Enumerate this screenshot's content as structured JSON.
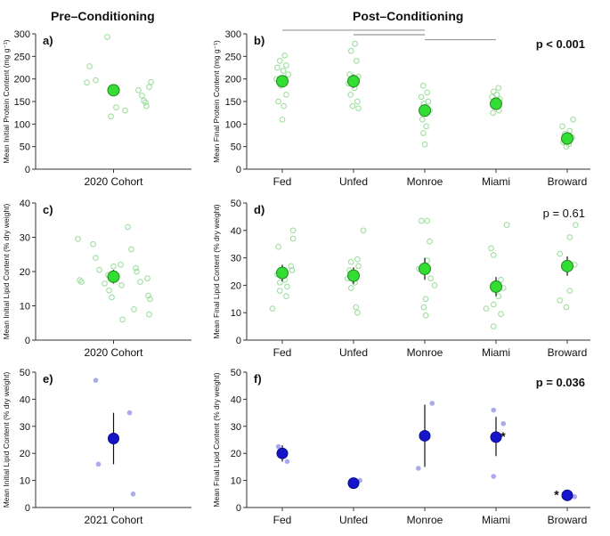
{
  "headers": {
    "left": "Pre–Conditioning",
    "right": "Post–Conditioning"
  },
  "colors": {
    "point_fill": "#33dd33",
    "point_stroke": "#1e8a1e",
    "jitter_green": "#9fde9f",
    "point_blue": "#1515cc",
    "jitter_blue": "#aaaaee",
    "axis": "#333333",
    "sig_bar": "#999999"
  },
  "chart_data": [
    {
      "id": "a",
      "type": "scatter",
      "panel_label": "a)",
      "ylabel": "Mean Initial Protein Content (mg g⁻¹)",
      "ylim": [
        0,
        300
      ],
      "yticks": [
        0,
        50,
        100,
        150,
        200,
        250,
        300
      ],
      "categories": [
        "2020 Cohort"
      ],
      "style": "green",
      "points": [
        {
          "category": "2020 Cohort",
          "mean": 175,
          "err_low": 170,
          "err_high": 180,
          "raw": [
            {
              "v": 192,
              "o": -0.3
            },
            {
              "v": 228,
              "o": -0.27
            },
            {
              "v": 197,
              "o": -0.2
            },
            {
              "v": 293,
              "o": -0.07
            },
            {
              "v": 117,
              "o": -0.03
            },
            {
              "v": 137,
              "o": 0.03
            },
            {
              "v": 130,
              "o": 0.13
            },
            {
              "v": 175,
              "o": 0.28
            },
            {
              "v": 163,
              "o": 0.32
            },
            {
              "v": 152,
              "o": 0.34
            },
            {
              "v": 148,
              "o": 0.36
            },
            {
              "v": 140,
              "o": 0.37
            },
            {
              "v": 182,
              "o": 0.4
            },
            {
              "v": 193,
              "o": 0.42
            }
          ]
        }
      ],
      "annotation": ""
    },
    {
      "id": "b",
      "type": "scatter",
      "panel_label": "b)",
      "ylabel": "Mean Final Protein Content (mg g⁻¹)",
      "ylim": [
        0,
        300
      ],
      "yticks": [
        0,
        50,
        100,
        150,
        200,
        250,
        300
      ],
      "categories": [
        "Fed",
        "Unfed",
        "Monroe",
        "Miami",
        "Broward"
      ],
      "style": "green",
      "points": [
        {
          "category": "Fed",
          "mean": 195,
          "err_low": 182,
          "err_high": 208,
          "raw": [
            {
              "v": 252,
              "o": 0.05
            },
            {
              "v": 240,
              "o": -0.05
            },
            {
              "v": 230,
              "o": 0.08
            },
            {
              "v": 225,
              "o": -0.1
            },
            {
              "v": 218,
              "o": 0.02
            },
            {
              "v": 210,
              "o": 0.12
            },
            {
              "v": 200,
              "o": -0.12
            },
            {
              "v": 185,
              "o": -0.03
            },
            {
              "v": 165,
              "o": 0.08
            },
            {
              "v": 150,
              "o": -0.08
            },
            {
              "v": 140,
              "o": 0.03
            },
            {
              "v": 110,
              "o": 0.0
            }
          ]
        },
        {
          "category": "Unfed",
          "mean": 195,
          "err_low": 180,
          "err_high": 210,
          "raw": [
            {
              "v": 278,
              "o": 0.03
            },
            {
              "v": 262,
              "o": -0.05
            },
            {
              "v": 240,
              "o": 0.06
            },
            {
              "v": 210,
              "o": -0.08
            },
            {
              "v": 205,
              "o": 0.1
            },
            {
              "v": 190,
              "o": -0.1
            },
            {
              "v": 180,
              "o": 0.02
            },
            {
              "v": 165,
              "o": -0.06
            },
            {
              "v": 150,
              "o": 0.08
            },
            {
              "v": 140,
              "o": -0.02
            },
            {
              "v": 135,
              "o": 0.1
            }
          ]
        },
        {
          "category": "Monroe",
          "mean": 130,
          "err_low": 120,
          "err_high": 140,
          "raw": [
            {
              "v": 185,
              "o": -0.03
            },
            {
              "v": 170,
              "o": 0.05
            },
            {
              "v": 160,
              "o": -0.07
            },
            {
              "v": 150,
              "o": 0.07
            },
            {
              "v": 145,
              "o": -0.02
            },
            {
              "v": 130,
              "o": 0.1
            },
            {
              "v": 110,
              "o": -0.05
            },
            {
              "v": 95,
              "o": 0.03
            },
            {
              "v": 80,
              "o": -0.03
            },
            {
              "v": 55,
              "o": 0.0
            }
          ]
        },
        {
          "category": "Miami",
          "mean": 145,
          "err_low": 138,
          "err_high": 152,
          "raw": [
            {
              "v": 180,
              "o": 0.05
            },
            {
              "v": 172,
              "o": -0.05
            },
            {
              "v": 165,
              "o": 0.02
            },
            {
              "v": 160,
              "o": -0.08
            },
            {
              "v": 155,
              "o": 0.08
            },
            {
              "v": 140,
              "o": -0.03
            },
            {
              "v": 130,
              "o": 0.06
            },
            {
              "v": 125,
              "o": -0.06
            }
          ]
        },
        {
          "category": "Broward",
          "mean": 68,
          "err_low": 60,
          "err_high": 76,
          "raw": [
            {
              "v": 110,
              "o": 0.12
            },
            {
              "v": 95,
              "o": -0.1
            },
            {
              "v": 85,
              "o": 0.05
            },
            {
              "v": 78,
              "o": -0.05
            },
            {
              "v": 70,
              "o": 0.1
            },
            {
              "v": 60,
              "o": -0.08
            },
            {
              "v": 55,
              "o": 0.03
            },
            {
              "v": 50,
              "o": -0.02
            }
          ]
        }
      ],
      "annotation": "p < 0.001",
      "annotation_bold": true,
      "sig_bars": [
        {
          "from": "Fed",
          "to": "Monroe",
          "y": 308
        },
        {
          "from": "Unfed",
          "to": "Monroe",
          "y": 298
        },
        {
          "from": "Monroe",
          "to": "Miami",
          "y": 287
        }
      ]
    },
    {
      "id": "c",
      "type": "scatter",
      "panel_label": "c)",
      "ylabel": "Mean Initial Lipid Content (% dry weight)",
      "ylim": [
        0,
        40
      ],
      "yticks": [
        0,
        10,
        20,
        30,
        40
      ],
      "categories": [
        "2020 Cohort"
      ],
      "style": "green",
      "points": [
        {
          "category": "2020 Cohort",
          "mean": 18.5,
          "err_low": 16.5,
          "err_high": 20.5,
          "raw": [
            {
              "v": 29.5,
              "o": -0.4
            },
            {
              "v": 17.5,
              "o": -0.38
            },
            {
              "v": 17,
              "o": -0.36
            },
            {
              "v": 28,
              "o": -0.23
            },
            {
              "v": 24,
              "o": -0.2
            },
            {
              "v": 20.5,
              "o": -0.16
            },
            {
              "v": 16.5,
              "o": -0.1
            },
            {
              "v": 19,
              "o": -0.06
            },
            {
              "v": 14.5,
              "o": -0.05
            },
            {
              "v": 12.5,
              "o": -0.02
            },
            {
              "v": 21.5,
              "o": 0.0
            },
            {
              "v": 22,
              "o": 0.08
            },
            {
              "v": 16,
              "o": 0.09
            },
            {
              "v": 6,
              "o": 0.1
            },
            {
              "v": 33,
              "o": 0.16
            },
            {
              "v": 26.5,
              "o": 0.2
            },
            {
              "v": 9,
              "o": 0.23
            },
            {
              "v": 21,
              "o": 0.25
            },
            {
              "v": 20,
              "o": 0.26
            },
            {
              "v": 17,
              "o": 0.3
            },
            {
              "v": 18,
              "o": 0.38
            },
            {
              "v": 13,
              "o": 0.39
            },
            {
              "v": 7.5,
              "o": 0.4
            },
            {
              "v": 12,
              "o": 0.41
            }
          ]
        }
      ],
      "annotation": ""
    },
    {
      "id": "d",
      "type": "scatter",
      "panel_label": "d)",
      "ylabel": "Mean Final Lipid Content (% dry weight)",
      "ylim": [
        0,
        50
      ],
      "yticks": [
        0,
        10,
        20,
        30,
        40,
        50
      ],
      "categories": [
        "Fed",
        "Unfed",
        "Monroe",
        "Miami",
        "Broward"
      ],
      "style": "green",
      "points": [
        {
          "category": "Fed",
          "mean": 24.5,
          "err_low": 21.5,
          "err_high": 27.5,
          "raw": [
            {
              "v": 40,
              "o": 0.22
            },
            {
              "v": 37,
              "o": 0.22
            },
            {
              "v": 34,
              "o": -0.08
            },
            {
              "v": 27,
              "o": 0.18
            },
            {
              "v": 25.5,
              "o": 0.2
            },
            {
              "v": 24,
              "o": -0.1
            },
            {
              "v": 22,
              "o": 0.05
            },
            {
              "v": 21,
              "o": -0.05
            },
            {
              "v": 19.5,
              "o": 0.1
            },
            {
              "v": 18,
              "o": -0.05
            },
            {
              "v": 16,
              "o": 0.08
            },
            {
              "v": 11.5,
              "o": -0.2
            }
          ]
        },
        {
          "category": "Unfed",
          "mean": 23.5,
          "err_low": 20.5,
          "err_high": 26.5,
          "raw": [
            {
              "v": 40,
              "o": 0.2
            },
            {
              "v": 29.5,
              "o": 0.08
            },
            {
              "v": 28.5,
              "o": -0.05
            },
            {
              "v": 27,
              "o": 0.1
            },
            {
              "v": 25.5,
              "o": -0.08
            },
            {
              "v": 24,
              "o": 0.05
            },
            {
              "v": 22.5,
              "o": -0.12
            },
            {
              "v": 21,
              "o": 0.03
            },
            {
              "v": 19,
              "o": -0.05
            },
            {
              "v": 12,
              "o": 0.05
            },
            {
              "v": 10,
              "o": 0.08
            }
          ]
        },
        {
          "category": "Monroe",
          "mean": 26,
          "err_low": 22,
          "err_high": 30,
          "raw": [
            {
              "v": 43.5,
              "o": -0.07
            },
            {
              "v": 43.5,
              "o": 0.05
            },
            {
              "v": 36,
              "o": 0.1
            },
            {
              "v": 29,
              "o": 0.05
            },
            {
              "v": 26,
              "o": -0.12
            },
            {
              "v": 22.5,
              "o": 0.12
            },
            {
              "v": 20,
              "o": 0.2
            },
            {
              "v": 15,
              "o": 0.02
            },
            {
              "v": 12,
              "o": -0.02
            },
            {
              "v": 9,
              "o": 0.02
            }
          ]
        },
        {
          "category": "Miami",
          "mean": 19.5,
          "err_low": 16,
          "err_high": 23,
          "raw": [
            {
              "v": 42,
              "o": 0.22
            },
            {
              "v": 33.5,
              "o": -0.1
            },
            {
              "v": 31,
              "o": -0.05
            },
            {
              "v": 22,
              "o": 0.1
            },
            {
              "v": 19,
              "o": 0.15
            },
            {
              "v": 16,
              "o": 0.05
            },
            {
              "v": 13,
              "o": -0.05
            },
            {
              "v": 11.5,
              "o": -0.2
            },
            {
              "v": 9.5,
              "o": 0.1
            },
            {
              "v": 5,
              "o": -0.05
            }
          ]
        },
        {
          "category": "Broward",
          "mean": 27,
          "err_low": 23.5,
          "err_high": 30.5,
          "raw": [
            {
              "v": 42,
              "o": 0.17
            },
            {
              "v": 37.5,
              "o": 0.05
            },
            {
              "v": 31.5,
              "o": -0.15
            },
            {
              "v": 27.5,
              "o": 0.15
            },
            {
              "v": 18,
              "o": 0.05
            },
            {
              "v": 14.5,
              "o": -0.15
            },
            {
              "v": 12,
              "o": -0.02
            }
          ]
        }
      ],
      "annotation": "p = 0.61",
      "annotation_bold": false
    },
    {
      "id": "e",
      "type": "scatter",
      "panel_label": "e)",
      "ylabel": "Mean Initial Lipid Content (% dry weight)",
      "ylim": [
        0,
        50
      ],
      "yticks": [
        0,
        10,
        20,
        30,
        40,
        50
      ],
      "categories": [
        "2021 Cohort"
      ],
      "style": "blue",
      "points": [
        {
          "category": "2021 Cohort",
          "mean": 25.5,
          "err_low": 16,
          "err_high": 35,
          "raw": [
            {
              "v": 47,
              "o": -0.2
            },
            {
              "v": 16,
              "o": -0.17
            },
            {
              "v": 35,
              "o": 0.18
            },
            {
              "v": 5,
              "o": 0.22
            }
          ]
        }
      ],
      "annotation": ""
    },
    {
      "id": "f",
      "type": "scatter",
      "panel_label": "f)",
      "ylabel": "Mean Final Lipid Content (% dry weight)",
      "ylim": [
        0,
        50
      ],
      "yticks": [
        0,
        10,
        20,
        30,
        40,
        50
      ],
      "categories": [
        "Fed",
        "Unfed",
        "Monroe",
        "Miami",
        "Broward"
      ],
      "style": "blue",
      "points": [
        {
          "category": "Fed",
          "mean": 20,
          "err_low": 17,
          "err_high": 23,
          "raw": [
            {
              "v": 22.5,
              "o": -0.08
            },
            {
              "v": 17,
              "o": 0.1
            }
          ]
        },
        {
          "category": "Unfed",
          "mean": 9,
          "err_low": 9,
          "err_high": 9,
          "raw": [
            {
              "v": 10,
              "o": 0.13
            }
          ]
        },
        {
          "category": "Monroe",
          "mean": 26.5,
          "err_low": 15,
          "err_high": 38,
          "raw": [
            {
              "v": 38.5,
              "o": 0.15
            },
            {
              "v": 14.5,
              "o": -0.13
            }
          ]
        },
        {
          "category": "Miami",
          "mean": 26,
          "err_low": 19,
          "err_high": 33.5,
          "raw": [
            {
              "v": 36,
              "o": -0.05
            },
            {
              "v": 31,
              "o": 0.15
            },
            {
              "v": 11.5,
              "o": -0.05
            }
          ],
          "star": "*"
        },
        {
          "category": "Broward",
          "mean": 4.5,
          "err_low": 4.5,
          "err_high": 4.5,
          "raw": [
            {
              "v": 4,
              "o": 0.15
            }
          ],
          "star": "*"
        }
      ],
      "annotation": "p = 0.036",
      "annotation_bold": true
    }
  ]
}
